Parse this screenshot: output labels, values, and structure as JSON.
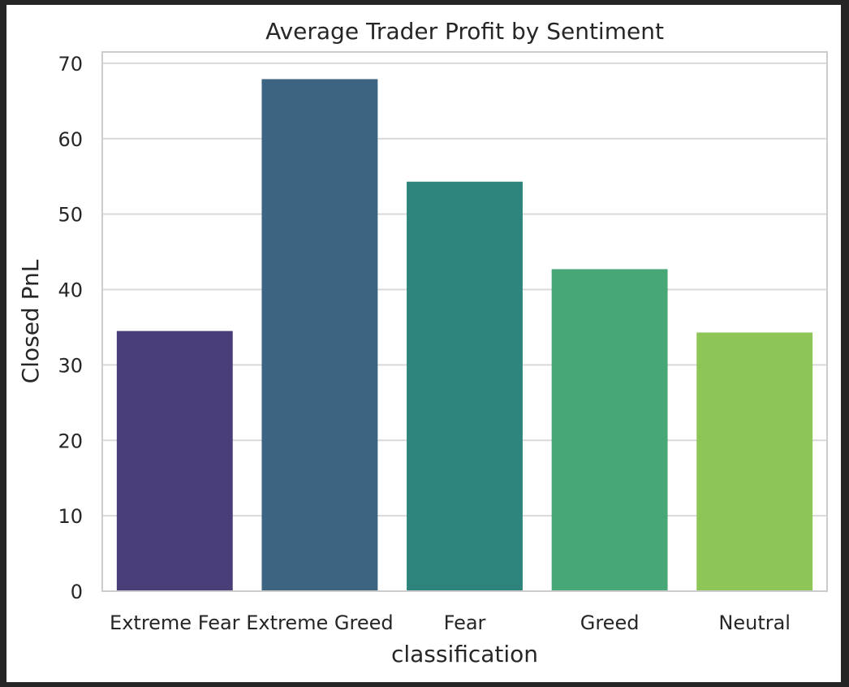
{
  "chart_data": {
    "type": "bar",
    "title": "Average Trader Profit by Sentiment",
    "xlabel": "classification",
    "ylabel": "Closed PnL",
    "categories": [
      "Extreme Fear",
      "Extreme Greed",
      "Fear",
      "Greed",
      "Neutral"
    ],
    "values": [
      34.5,
      67.9,
      54.3,
      42.7,
      34.3
    ],
    "ylim": [
      0,
      71.5
    ],
    "yticks": [
      0,
      10,
      20,
      30,
      40,
      50,
      60,
      70
    ],
    "colors": [
      "#4b3d78",
      "#3d6480",
      "#2e837c",
      "#47a777",
      "#8dc556"
    ],
    "grid": true,
    "legend": "none"
  }
}
